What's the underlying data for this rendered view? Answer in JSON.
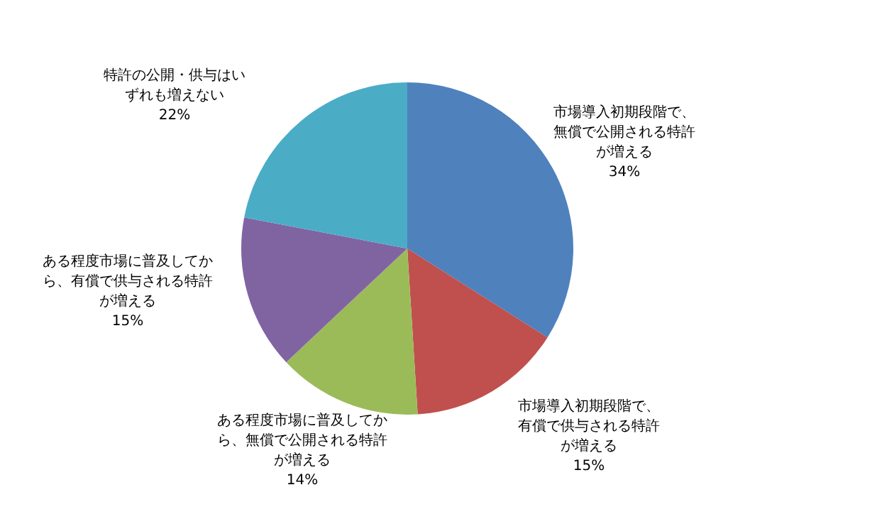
{
  "chart_data": {
    "type": "pie",
    "categories": [
      "市場導入初期段階で、無償で公開される特許が増える",
      "市場導入初期段階で、有償で供与される特許が増える",
      "ある程度市場に普及してから、無償で公開される特許が増える",
      "ある程度市場に普及してから、有償で供与される特許が増える",
      "特許の公開・供与はいずれも増えない"
    ],
    "values": [
      34,
      15,
      14,
      15,
      22
    ],
    "value_labels": [
      "34%",
      "15%",
      "14%",
      "15%",
      "22%"
    ],
    "colors": [
      "#4f81bd",
      "#c0504d",
      "#9bbb59",
      "#8064a2",
      "#4bacc6"
    ]
  }
}
